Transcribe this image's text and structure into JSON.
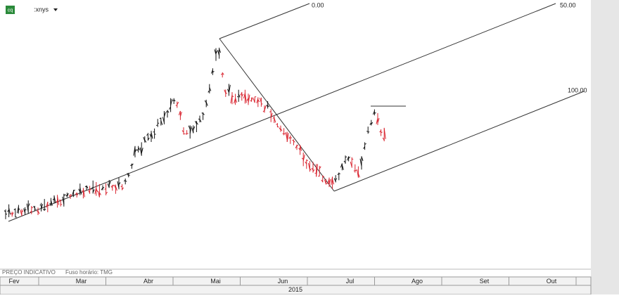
{
  "header": {
    "badge": "cq",
    "symbol": ":xnys"
  },
  "levels": [
    "0.00",
    "50.00",
    "100.00"
  ],
  "footer": {
    "note": "PREÇO INDICATIVO",
    "timezone": "Fuso horário: TMG"
  },
  "months": [
    "Fev",
    "Mar",
    "Abr",
    "Mai",
    "Jun",
    "Jul",
    "Ago",
    "Set",
    "Out"
  ],
  "year": "2015"
}
